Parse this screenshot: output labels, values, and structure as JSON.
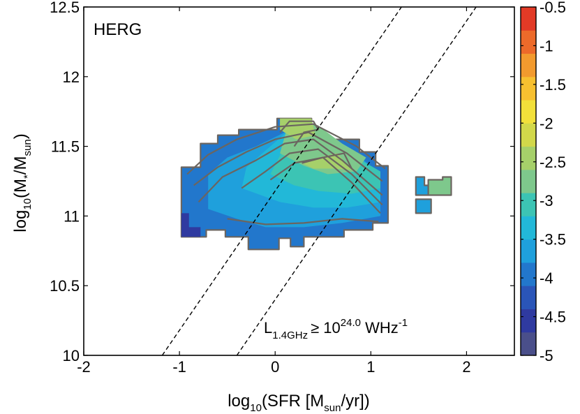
{
  "chart_data": {
    "type": "heatmap",
    "panel_label": "HERG",
    "xlabel": {
      "prefix": "log",
      "sub": "10",
      "rest": "(SFR [M",
      "sub2": "sun",
      "tail": "/yr])"
    },
    "ylabel": {
      "prefix": "log",
      "sub": "10",
      "rest": "(M",
      "sub2": "*",
      "mid": "/M",
      "sub3": "sun",
      "tail": ")"
    },
    "xlim": [
      -2,
      2.5
    ],
    "ylim": [
      10,
      12.5
    ],
    "x_ticks": [
      -2,
      -1,
      0,
      1,
      2
    ],
    "x_tick_labels": [
      "-2",
      "-1",
      "0",
      "1",
      "2"
    ],
    "y_ticks": [
      10,
      10.5,
      11,
      11.5,
      12,
      12.5
    ],
    "y_tick_labels": [
      "10",
      "10.5",
      "11",
      "11.5",
      "12",
      "12.5"
    ],
    "colorbar": {
      "range": [
        -5,
        -0.5
      ],
      "ticks": [
        -5,
        -4.5,
        -4,
        -3.5,
        -3,
        -2.5,
        -2,
        -1.5,
        -1,
        -0.5
      ],
      "tick_labels": [
        "-5",
        "-4.5",
        "-4",
        "-3.5",
        "-3",
        "-2.5",
        "-2",
        "-1.5",
        "-1",
        "-0.5"
      ],
      "colors": [
        "#4a4f8a",
        "#2f3aa0",
        "#2a55b8",
        "#2277cc",
        "#1fa0dc",
        "#22b8d8",
        "#3cc4b4",
        "#7ec88c",
        "#a6d06a",
        "#d2d84a",
        "#f2e03a",
        "#f7c030",
        "#f29a2e",
        "#ec6a2a",
        "#e23a26"
      ]
    },
    "dashed_lines": [
      {
        "x": [
          -1.18,
          1.32
        ],
        "y": [
          10,
          12.5
        ]
      },
      {
        "x": [
          -0.4,
          2.1
        ],
        "y": [
          10,
          12.5
        ]
      }
    ],
    "annotation": {
      "base": "L",
      "sub": "1.4GHz",
      "ge": "≥ 10",
      "sup": "24.0",
      "unit": " WHz",
      "sup2": "-1"
    },
    "regions": [
      {
        "value": -4.1,
        "points": [
          [
            -0.98,
            10.85
          ],
          [
            -0.98,
            11.35
          ],
          [
            -0.78,
            11.35
          ],
          [
            -0.78,
            11.52
          ],
          [
            -0.6,
            11.52
          ],
          [
            -0.6,
            11.58
          ],
          [
            -0.38,
            11.58
          ],
          [
            -0.38,
            11.62
          ],
          [
            0.02,
            11.62
          ],
          [
            0.02,
            11.7
          ],
          [
            0.38,
            11.7
          ],
          [
            0.38,
            11.55
          ],
          [
            0.88,
            11.55
          ],
          [
            0.88,
            11.46
          ],
          [
            1.05,
            11.46
          ],
          [
            1.05,
            11.36
          ],
          [
            1.18,
            11.36
          ],
          [
            1.18,
            10.95
          ],
          [
            1.02,
            10.95
          ],
          [
            1.02,
            10.9
          ],
          [
            0.72,
            10.9
          ],
          [
            0.72,
            10.85
          ],
          [
            0.3,
            10.85
          ],
          [
            0.3,
            10.78
          ],
          [
            0.16,
            10.78
          ],
          [
            0.16,
            10.84
          ],
          [
            0.04,
            10.84
          ],
          [
            0.04,
            10.76
          ],
          [
            -0.28,
            10.76
          ],
          [
            -0.28,
            10.85
          ],
          [
            -0.52,
            10.85
          ],
          [
            -0.52,
            10.9
          ],
          [
            -0.72,
            10.9
          ],
          [
            -0.72,
            10.85
          ]
        ]
      },
      {
        "value": -4.6,
        "points": [
          [
            -0.98,
            10.85
          ],
          [
            -0.98,
            11.02
          ],
          [
            -0.9,
            11.02
          ],
          [
            -0.9,
            10.92
          ],
          [
            -0.78,
            10.92
          ],
          [
            -0.78,
            10.85
          ]
        ]
      },
      {
        "value": -3.75,
        "points": [
          [
            -0.7,
            11.05
          ],
          [
            -0.7,
            11.3
          ],
          [
            -0.5,
            11.42
          ],
          [
            -0.2,
            11.5
          ],
          [
            0.1,
            11.6
          ],
          [
            0.4,
            11.62
          ],
          [
            0.75,
            11.5
          ],
          [
            1.1,
            11.3
          ],
          [
            1.1,
            11.0
          ],
          [
            0.7,
            10.95
          ],
          [
            0.3,
            10.92
          ],
          [
            -0.1,
            10.92
          ],
          [
            -0.4,
            10.98
          ]
        ]
      },
      {
        "value": -3.3,
        "points": [
          [
            -0.35,
            11.2
          ],
          [
            -0.3,
            11.35
          ],
          [
            -0.05,
            11.5
          ],
          [
            0.15,
            11.62
          ],
          [
            0.45,
            11.62
          ],
          [
            0.8,
            11.45
          ],
          [
            1.1,
            11.3
          ],
          [
            1.1,
            11.1
          ],
          [
            0.75,
            11.06
          ],
          [
            0.4,
            11.06
          ],
          [
            0.05,
            11.1
          ]
        ]
      },
      {
        "value": -3.0,
        "points": [
          [
            -0.05,
            11.3
          ],
          [
            0.1,
            11.5
          ],
          [
            0.3,
            11.65
          ],
          [
            0.6,
            11.55
          ],
          [
            0.9,
            11.4
          ],
          [
            1.1,
            11.32
          ],
          [
            1.1,
            11.2
          ],
          [
            0.8,
            11.16
          ],
          [
            0.45,
            11.18
          ],
          [
            0.2,
            11.22
          ]
        ]
      },
      {
        "value": -2.8,
        "points": [
          [
            0.05,
            11.45
          ],
          [
            0.12,
            11.62
          ],
          [
            0.25,
            11.7
          ],
          [
            0.45,
            11.65
          ],
          [
            0.7,
            11.52
          ],
          [
            0.95,
            11.42
          ],
          [
            0.85,
            11.32
          ],
          [
            0.55,
            11.3
          ],
          [
            0.3,
            11.36
          ]
        ]
      },
      {
        "value": -2.5,
        "points": [
          [
            0.05,
            11.62
          ],
          [
            0.05,
            11.7
          ],
          [
            0.38,
            11.7
          ],
          [
            0.42,
            11.58
          ],
          [
            0.22,
            11.55
          ]
        ]
      },
      {
        "value": -2.5,
        "points": [
          [
            0.28,
            11.38
          ],
          [
            0.45,
            11.42
          ],
          [
            0.65,
            11.45
          ],
          [
            0.8,
            11.33
          ],
          [
            0.6,
            11.34
          ],
          [
            0.4,
            11.34
          ]
        ]
      },
      {
        "value": -3.6,
        "points": [
          [
            1.47,
            11.15
          ],
          [
            1.47,
            11.28
          ],
          [
            1.56,
            11.28
          ],
          [
            1.56,
            11.22
          ],
          [
            1.6,
            11.22
          ],
          [
            1.6,
            11.15
          ]
        ]
      },
      {
        "value": -2.75,
        "points": [
          [
            1.6,
            11.15
          ],
          [
            1.6,
            11.26
          ],
          [
            1.75,
            11.26
          ],
          [
            1.75,
            11.28
          ],
          [
            1.84,
            11.28
          ],
          [
            1.84,
            11.15
          ]
        ]
      },
      {
        "value": -3.6,
        "points": [
          [
            1.47,
            11.02
          ],
          [
            1.47,
            11.12
          ],
          [
            1.63,
            11.12
          ],
          [
            1.63,
            11.02
          ]
        ]
      }
    ],
    "contours": [
      [
        [
          -0.92,
          11.3
        ],
        [
          -0.7,
          11.44
        ],
        [
          -0.4,
          11.55
        ],
        [
          0.0,
          11.64
        ],
        [
          0.4,
          11.66
        ],
        [
          0.85,
          11.5
        ],
        [
          1.15,
          11.34
        ]
      ],
      [
        [
          -0.85,
          11.22
        ],
        [
          -0.6,
          11.35
        ],
        [
          -0.3,
          11.46
        ],
        [
          0.0,
          11.55
        ],
        [
          0.35,
          11.6
        ],
        [
          0.75,
          11.45
        ],
        [
          1.12,
          11.25
        ]
      ],
      [
        [
          -0.8,
          11.1
        ],
        [
          -0.55,
          11.28
        ],
        [
          -0.2,
          11.4
        ],
        [
          0.1,
          11.52
        ],
        [
          0.4,
          11.55
        ],
        [
          0.7,
          11.4
        ],
        [
          1.12,
          11.15
        ]
      ],
      [
        [
          -0.35,
          11.2
        ],
        [
          -0.1,
          11.32
        ],
        [
          0.15,
          11.45
        ],
        [
          0.45,
          11.48
        ],
        [
          0.8,
          11.3
        ],
        [
          1.12,
          11.08
        ]
      ],
      [
        [
          -0.05,
          11.26
        ],
        [
          0.2,
          11.38
        ],
        [
          0.5,
          11.42
        ],
        [
          0.8,
          11.24
        ],
        [
          1.1,
          11.02
        ]
      ],
      [
        [
          -0.5,
          10.98
        ],
        [
          -0.1,
          10.94
        ],
        [
          0.3,
          10.95
        ],
        [
          0.7,
          10.98
        ],
        [
          1.08,
          10.96
        ]
      ],
      [
        [
          0.2,
          11.5
        ],
        [
          0.3,
          11.6
        ],
        [
          0.45,
          11.62
        ],
        [
          0.4,
          11.68
        ],
        [
          0.15,
          11.68
        ],
        [
          0.05,
          11.6
        ]
      ],
      [
        [
          0.28,
          11.38
        ],
        [
          0.5,
          11.42
        ],
        [
          0.72,
          11.45
        ],
        [
          0.8,
          11.34
        ]
      ]
    ]
  }
}
